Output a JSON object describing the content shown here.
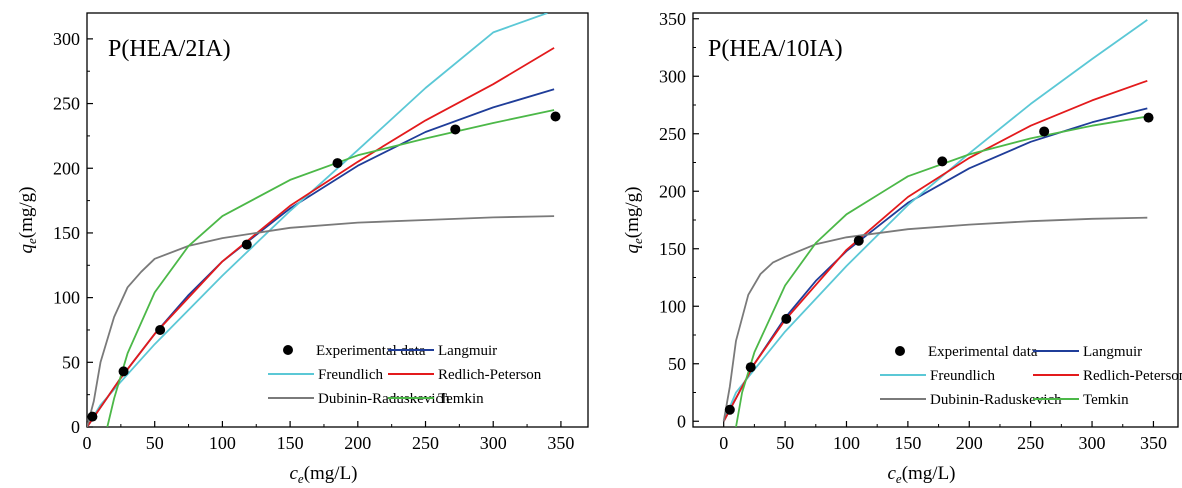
{
  "colors": {
    "experimental": "#000000",
    "langmuir": "#1f3d99",
    "freundlich": "#5bc8d6",
    "redlich_peterson": "#e31a1c",
    "dubinin_raduskevich": "#7a7a7a",
    "temkin": "#4cb848"
  },
  "chart_data": [
    {
      "type": "scatter",
      "title": "P(HEA/2IA)",
      "xlabel_main": "c",
      "xlabel_sub": "e",
      "xlabel_unit": "(mg/L)",
      "ylabel_main": "q",
      "ylabel_sub": "e",
      "ylabel_unit": "(mg/g)",
      "xlim": [
        0,
        370
      ],
      "ylim": [
        0,
        320
      ],
      "xticks": [
        0,
        50,
        100,
        150,
        200,
        250,
        300,
        350
      ],
      "yticks": [
        0,
        50,
        100,
        150,
        200,
        250,
        300
      ],
      "grid": false,
      "legend_position": "bottom-right",
      "series": [
        {
          "name": "Experimental data",
          "kind": "scatter",
          "color_key": "experimental",
          "x": [
            4,
            27,
            54,
            118,
            185,
            272,
            346
          ],
          "y": [
            8,
            43,
            75,
            141,
            204,
            230,
            240
          ]
        },
        {
          "name": "Langmuir",
          "kind": "line",
          "color_key": "langmuir",
          "x": [
            0,
            25,
            50,
            75,
            100,
            150,
            200,
            250,
            300,
            345
          ],
          "y": [
            0,
            38,
            72,
            102,
            128,
            169,
            202,
            228,
            247,
            261
          ]
        },
        {
          "name": "Freundlich",
          "kind": "line",
          "color_key": "freundlich",
          "x": [
            0,
            10,
            25,
            50,
            100,
            150,
            200,
            250,
            300,
            340
          ],
          "y": [
            0,
            17,
            35,
            64,
            117,
            167,
            214,
            262,
            305,
            320
          ]
        },
        {
          "name": "Redlich-Peterson",
          "kind": "line",
          "color_key": "redlich_peterson",
          "x": [
            0,
            25,
            50,
            100,
            150,
            200,
            250,
            300,
            345
          ],
          "y": [
            0,
            38,
            72,
            128,
            171,
            205,
            237,
            265,
            293
          ]
        },
        {
          "name": "Dubinin-Raduskevich",
          "kind": "line",
          "color_key": "dubinin_raduskevich",
          "x": [
            0,
            5,
            10,
            20,
            30,
            40,
            50,
            75,
            100,
            150,
            200,
            250,
            300,
            345
          ],
          "y": [
            0,
            20,
            50,
            85,
            108,
            120,
            130,
            140,
            146,
            154,
            158,
            160,
            162,
            163
          ]
        },
        {
          "name": "Temkin",
          "kind": "line",
          "color_key": "temkin",
          "x": [
            15,
            20,
            30,
            50,
            75,
            100,
            150,
            200,
            250,
            300,
            345
          ],
          "y": [
            0,
            22,
            57,
            104,
            140,
            163,
            191,
            210,
            223,
            235,
            245
          ]
        }
      ]
    },
    {
      "type": "scatter",
      "title": "P(HEA/10IA)",
      "xlabel_main": "c",
      "xlabel_sub": "e",
      "xlabel_unit": "(mg/L)",
      "ylabel_main": "q",
      "ylabel_sub": "e",
      "ylabel_unit": "(mg/g)",
      "xlim": [
        -25,
        370
      ],
      "ylim": [
        -5,
        355
      ],
      "xticks": [
        0,
        50,
        100,
        150,
        200,
        250,
        300,
        350
      ],
      "yticks": [
        0,
        50,
        100,
        150,
        200,
        250,
        300,
        350
      ],
      "grid": false,
      "legend_position": "bottom-right",
      "series": [
        {
          "name": "Experimental data",
          "kind": "scatter",
          "color_key": "experimental",
          "x": [
            5,
            22,
            51,
            110,
            178,
            261,
            346
          ],
          "y": [
            10,
            47,
            89,
            157,
            226,
            252,
            264
          ]
        },
        {
          "name": "Langmuir",
          "kind": "line",
          "color_key": "langmuir",
          "x": [
            0,
            25,
            50,
            75,
            100,
            150,
            200,
            250,
            300,
            345
          ],
          "y": [
            0,
            50,
            90,
            122,
            148,
            190,
            220,
            243,
            260,
            272
          ]
        },
        {
          "name": "Freundlich",
          "kind": "line",
          "color_key": "freundlich",
          "x": [
            0,
            10,
            25,
            50,
            100,
            150,
            200,
            250,
            300,
            345
          ],
          "y": [
            0,
            25,
            45,
            78,
            135,
            188,
            233,
            276,
            315,
            349
          ]
        },
        {
          "name": "Redlich-Peterson",
          "kind": "line",
          "color_key": "redlich_peterson",
          "x": [
            0,
            25,
            50,
            100,
            150,
            200,
            250,
            300,
            345
          ],
          "y": [
            0,
            50,
            88,
            149,
            195,
            229,
            257,
            279,
            296
          ]
        },
        {
          "name": "Dubinin-Raduskevich",
          "kind": "line",
          "color_key": "dubinin_raduskevich",
          "x": [
            0,
            5,
            10,
            20,
            30,
            40,
            50,
            75,
            100,
            150,
            200,
            250,
            300,
            345
          ],
          "y": [
            0,
            30,
            70,
            110,
            128,
            138,
            143,
            154,
            160,
            167,
            171,
            174,
            176,
            177
          ]
        },
        {
          "name": "Temkin",
          "kind": "line",
          "color_key": "temkin",
          "x": [
            10,
            15,
            25,
            50,
            75,
            100,
            150,
            200,
            250,
            300,
            345
          ],
          "y": [
            -5,
            25,
            60,
            118,
            155,
            180,
            213,
            232,
            246,
            257,
            265
          ]
        }
      ]
    }
  ]
}
